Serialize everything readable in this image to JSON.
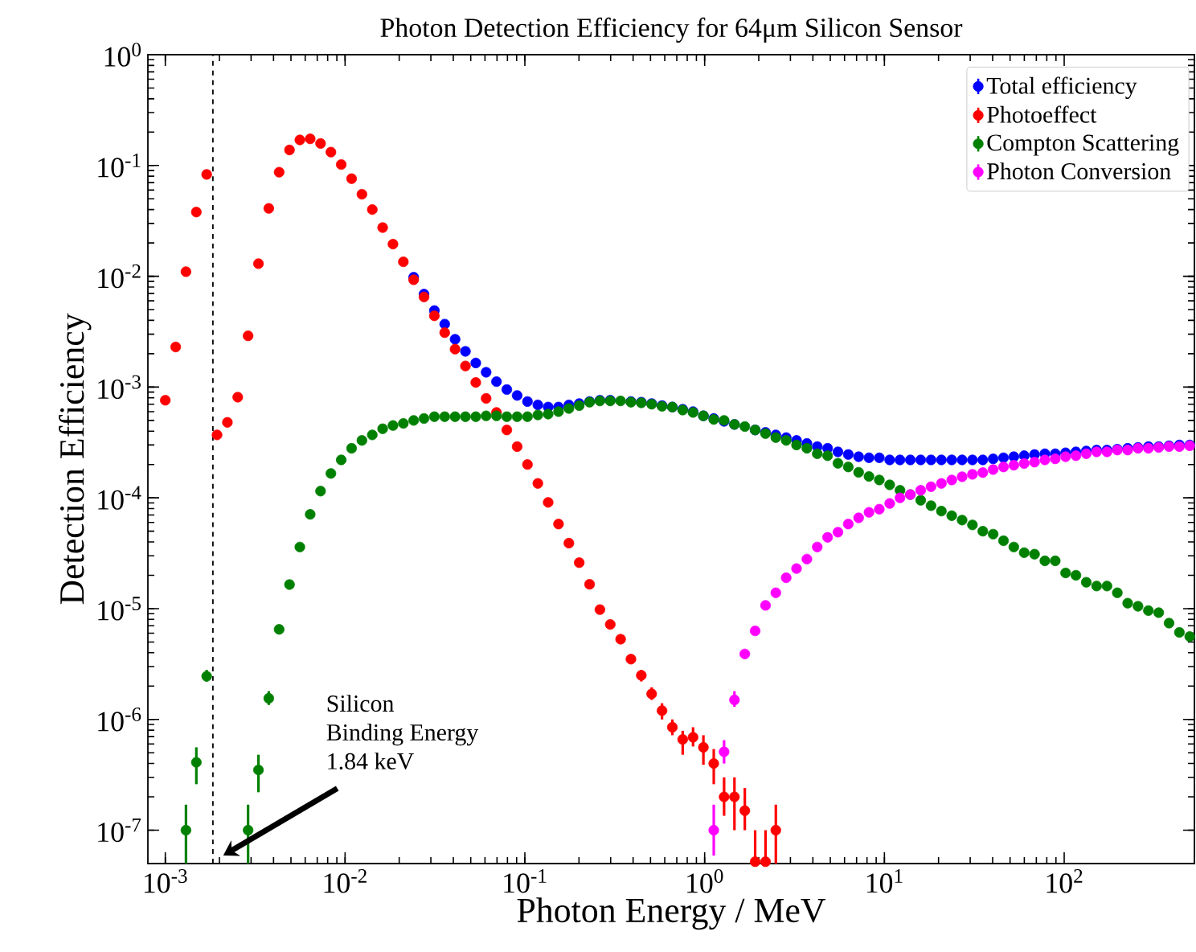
{
  "chart_data": {
    "type": "scatter",
    "title": "Photon Detection Efficiency for 64μm Silicon Sensor",
    "xlabel": "Photon Energy / MeV",
    "ylabel": "Detection Efficiency",
    "log": "xy",
    "marker": "circle",
    "legend": "top right",
    "xlim": [
      0.0008,
      530
    ],
    "ylim": [
      5e-08,
      1
    ],
    "xticks": [
      {
        "value": 0.001,
        "label": "10$^{-3}$"
      },
      {
        "value": 0.01,
        "label": "10$^{-2}$"
      },
      {
        "value": 0.1,
        "label": "10$^{-1}$"
      },
      {
        "value": 1,
        "label": "10$^{0}$"
      },
      {
        "value": 10,
        "label": "10$^{1}$"
      },
      {
        "value": 100,
        "label": "10$^{2}$"
      }
    ],
    "yticks": [
      {
        "value": 1e-07,
        "label": "10$^{-7}$"
      },
      {
        "value": 1e-06,
        "label": "10$^{-6}$"
      },
      {
        "value": 1e-05,
        "label": "10$^{-5}$"
      },
      {
        "value": 0.0001,
        "label": "10$^{-4}$"
      },
      {
        "value": 0.001,
        "label": "10$^{-3}$"
      },
      {
        "value": 0.01,
        "label": "10$^{-2}$"
      },
      {
        "value": 0.1,
        "label": "10$^{-1}$"
      },
      {
        "value": 1,
        "label": "10$^{0}$"
      }
    ],
    "ref_lines": [
      {
        "axis": "x",
        "value": 0.00184,
        "color": "#000000",
        "line_style": "dashed"
      }
    ],
    "annotations": [
      "Silicon\nBinding Energy\n1.84 keV"
    ],
    "x": [
      0.001,
      0.001142,
      0.001303,
      0.001488,
      0.001699,
      0.00194,
      0.002215,
      0.002529,
      0.002887,
      0.003297,
      0.003764,
      0.004298,
      0.004907,
      0.005603,
      0.006397,
      0.007304,
      0.00834,
      0.009518,
      0.01087,
      0.01241,
      0.01417,
      0.01618,
      0.01847,
      0.02109,
      0.02407,
      0.02748,
      0.03138,
      0.03583,
      0.04091,
      0.04671,
      0.05333,
      0.06089,
      0.06952,
      0.07937,
      0.0906,
      0.1034,
      0.1181,
      0.1348,
      0.1539,
      0.1757,
      0.2006,
      0.2291,
      0.2615,
      0.2986,
      0.3409,
      0.3892,
      0.4444,
      0.5074,
      0.5793,
      0.6614,
      0.7551,
      0.8621,
      0.9843,
      1.124,
      1.283,
      1.465,
      1.673,
      1.91,
      2.181,
      2.489,
      2.842,
      3.245,
      3.705,
      4.23,
      4.83,
      5.514,
      6.296,
      7.188,
      8.207,
      9.368,
      10.7,
      12.21,
      13.94,
      15.92,
      18.17,
      20.75,
      23.69,
      27.05,
      30.88,
      35.26,
      40.25,
      45.96,
      52.47,
      59.91,
      68.4,
      78.09,
      89.16,
      101.8,
      116.2,
      132.7,
      151.5,
      173.0,
      197.5,
      225.5,
      257.4,
      293.9,
      335.6,
      383.1,
      437.4,
      499.4
    ],
    "series": [
      {
        "name": "Total efficiency",
        "color": "#0000ff",
        "values": [
          null,
          null,
          null,
          null,
          null,
          null,
          null,
          null,
          null,
          null,
          null,
          null,
          null,
          null,
          null,
          null,
          null,
          null,
          null,
          null,
          null,
          null,
          null,
          null,
          0.0098,
          0.0069,
          0.0049,
          0.0037,
          0.0027,
          0.0021,
          0.00165,
          0.00136,
          0.00112,
          0.00095,
          0.00084,
          0.00074,
          0.00069,
          0.00066,
          0.00066,
          0.00069,
          0.00071,
          0.00074,
          0.00076,
          0.00076,
          null,
          0.00074,
          0.00073,
          0.00071,
          0.00068,
          0.00066,
          0.00063,
          0.0006,
          0.00055,
          0.00052,
          0.00049,
          0.00046,
          null,
          0.00041,
          0.00039,
          0.00037,
          0.00035,
          0.00033,
          0.00031,
          0.00029,
          0.00028,
          0.00026,
          0.000246,
          0.000235,
          0.00023,
          0.00023,
          0.00022,
          0.00022,
          0.00022,
          0.00022,
          0.00022,
          0.00022,
          0.00022,
          0.00022,
          0.00022,
          0.00022,
          0.000225,
          0.00023,
          0.000235,
          0.00024,
          0.000246,
          0.00025,
          0.00025,
          0.000255,
          0.00026,
          0.000265,
          0.00027,
          0.00027,
          0.000275,
          0.00028,
          0.000285,
          0.00029,
          0.00029,
          0.000295,
          0.0003,
          0.0003
        ]
      },
      {
        "name": "Photoeffect",
        "color": "#ff0000",
        "values": [
          0.00076,
          0.0023,
          0.011,
          0.038,
          0.083,
          0.00037,
          0.00048,
          0.00081,
          0.0029,
          0.013,
          0.041,
          0.087,
          0.138,
          0.17,
          0.174,
          0.158,
          0.132,
          0.102,
          0.076,
          0.055,
          0.04,
          0.0275,
          0.0195,
          0.0135,
          0.0093,
          0.0065,
          0.0044,
          0.0031,
          0.0022,
          0.00155,
          0.0011,
          0.00079,
          0.00059,
          0.00041,
          0.00029,
          0.0002,
          0.000135,
          9.1e-05,
          5.8e-05,
          3.9e-05,
          2.6e-05,
          1.66e-05,
          9.8e-06,
          7.2e-06,
          5.3e-06,
          3.5e-06,
          2.5e-06,
          1.7e-06,
          1.2e-06,
          8.5e-07,
          6.6e-07,
          6.9e-07,
          5.6e-07,
          4e-07,
          2e-07,
          2e-07,
          1.5e-07,
          5.2e-08,
          5.2e-08,
          1e-07,
          null,
          null,
          null,
          null,
          null,
          null,
          null,
          null,
          null,
          null,
          null,
          null,
          null,
          null,
          null,
          null,
          null,
          null,
          null,
          null,
          null,
          null,
          null,
          null,
          null,
          null,
          null,
          null,
          null,
          null,
          null,
          null,
          null,
          null,
          null,
          null,
          null,
          null,
          null,
          null
        ],
        "errors": [
          null,
          null,
          null,
          null,
          null,
          null,
          null,
          null,
          null,
          null,
          null,
          null,
          null,
          null,
          null,
          null,
          null,
          null,
          null,
          null,
          null,
          null,
          null,
          null,
          null,
          null,
          null,
          null,
          null,
          null,
          null,
          null,
          null,
          null,
          null,
          null,
          null,
          null,
          null,
          null,
          null,
          null,
          null,
          null,
          null,
          null,
          [
            2.2e-06,
            2.8e-06
          ],
          [
            1.5e-06,
            1.95e-06
          ],
          [
            1e-06,
            1.4e-06
          ],
          [
            7.2e-07,
            1e-06
          ],
          [
            4.8e-07,
            7.9e-07
          ],
          [
            5.7e-07,
            8.5e-07
          ],
          [
            3.9e-07,
            7.2e-07
          ],
          [
            2.6e-07,
            5.4e-07
          ],
          [
            1.35e-07,
            3e-07
          ],
          [
            1e-07,
            3e-07
          ],
          [
            1e-07,
            2.4e-07
          ],
          [
            5e-08,
            1e-07
          ],
          [
            5e-08,
            1e-07
          ],
          [
            5e-08,
            1.7e-07
          ],
          null,
          null,
          null,
          null,
          null,
          null,
          null,
          null,
          null,
          null,
          null,
          null,
          null,
          null,
          null,
          null,
          null,
          null,
          null,
          null,
          null,
          null,
          null,
          null,
          null,
          null,
          null,
          null,
          null,
          null,
          null,
          null,
          null,
          null,
          null,
          null,
          null,
          null,
          null,
          null
        ]
      },
      {
        "name": "Compton Scattering",
        "color": "#008000",
        "values": [
          null,
          null,
          1e-07,
          4.1e-07,
          2.45e-06,
          null,
          null,
          null,
          1e-07,
          3.5e-07,
          1.55e-06,
          6.5e-06,
          1.65e-05,
          3.6e-05,
          7.1e-05,
          0.000115,
          0.000166,
          0.00022,
          0.00028,
          0.00033,
          0.00037,
          0.00042,
          0.00045,
          0.00047,
          0.0005,
          0.00052,
          0.00054,
          0.00054,
          0.00054,
          0.00054,
          0.00054,
          0.00055,
          0.00055,
          0.00054,
          0.00054,
          0.00054,
          0.00056,
          0.00057,
          0.0006,
          0.00064,
          0.00068,
          0.00073,
          0.00075,
          0.00075,
          0.00075,
          0.00073,
          0.00072,
          0.0007,
          0.00067,
          0.00066,
          0.00062,
          0.00059,
          0.00055,
          0.00051,
          0.0005,
          0.00046,
          0.00044,
          0.00041,
          0.00038,
          0.00035,
          0.00033,
          0.0003,
          0.00028,
          0.00025,
          0.00024,
          0.000205,
          0.00019,
          0.00017,
          0.000156,
          0.000145,
          0.000131,
          0.000117,
          0.000107,
          9.5e-05,
          8.5e-05,
          7.6e-05,
          6.9e-05,
          6.3e-05,
          5.7e-05,
          5e-05,
          4.7e-05,
          4.1e-05,
          3.6e-05,
          3.2e-05,
          3.1e-05,
          2.7e-05,
          2.7e-05,
          2.1e-05,
          2e-05,
          1.73e-05,
          1.6e-05,
          1.6e-05,
          1.39e-05,
          1.12e-05,
          1.05e-05,
          9.6e-06,
          9.2e-06,
          7.4e-06,
          6.1e-06,
          5.6e-06
        ],
        "errors": [
          null,
          null,
          [
            5e-08,
            1.7e-07
          ],
          [
            2.6e-07,
            5.6e-07
          ],
          [
            2.2e-06,
            2.8e-06
          ],
          null,
          null,
          null,
          [
            5e-08,
            1.7e-07
          ],
          [
            2.2e-07,
            4.8e-07
          ],
          [
            1.35e-06,
            1.8e-06
          ],
          null,
          null,
          null,
          null,
          null,
          null,
          null,
          null,
          null,
          null,
          null,
          null,
          null,
          null,
          null,
          null,
          null,
          null,
          null,
          null,
          null,
          null,
          null,
          null,
          null,
          null,
          null,
          null,
          null,
          null,
          null,
          null,
          null,
          null,
          null,
          null,
          null,
          null,
          null,
          null,
          null,
          null,
          null,
          null,
          null,
          null,
          null,
          null,
          null,
          null,
          null,
          null,
          null,
          null,
          null,
          null,
          null,
          null,
          null,
          null,
          null,
          null,
          null,
          null,
          null,
          null,
          null,
          null,
          null,
          null,
          null,
          null,
          null,
          null,
          null,
          null,
          null,
          null,
          null,
          null,
          null,
          null,
          null,
          null,
          null,
          null,
          null,
          null,
          null
        ]
      },
      {
        "name": "Photon Conversion",
        "color": "#ff00ff",
        "values": [
          null,
          null,
          null,
          null,
          null,
          null,
          null,
          null,
          null,
          null,
          null,
          null,
          null,
          null,
          null,
          null,
          null,
          null,
          null,
          null,
          null,
          null,
          null,
          null,
          null,
          null,
          null,
          null,
          null,
          null,
          null,
          null,
          null,
          null,
          null,
          null,
          null,
          null,
          null,
          null,
          null,
          null,
          null,
          null,
          null,
          null,
          null,
          null,
          null,
          null,
          null,
          null,
          null,
          1e-07,
          5.1e-07,
          1.5e-06,
          3.9e-06,
          6.3e-06,
          1.07e-05,
          1.39e-05,
          1.9e-05,
          2.3e-05,
          2.8e-05,
          3.6e-05,
          4.4e-05,
          4.9e-05,
          5.8e-05,
          6.6e-05,
          7.4e-05,
          7.9e-05,
          8.9e-05,
          0.0001,
          0.000107,
          0.000117,
          0.000126,
          0.000135,
          0.000145,
          0.000155,
          0.000163,
          0.000169,
          0.00018,
          0.00019,
          0.000197,
          0.000204,
          0.00021,
          0.00022,
          0.000225,
          0.000235,
          0.00024,
          0.00025,
          0.00026,
          0.00026,
          0.00027,
          0.00027,
          0.00028,
          0.00028,
          0.000285,
          0.00029,
          0.00029,
          0.000295
        ],
        "errors": [
          null,
          null,
          null,
          null,
          null,
          null,
          null,
          null,
          null,
          null,
          null,
          null,
          null,
          null,
          null,
          null,
          null,
          null,
          null,
          null,
          null,
          null,
          null,
          null,
          null,
          null,
          null,
          null,
          null,
          null,
          null,
          null,
          null,
          null,
          null,
          null,
          null,
          null,
          null,
          null,
          null,
          null,
          null,
          null,
          null,
          null,
          null,
          null,
          null,
          null,
          null,
          null,
          null,
          [
            5.9e-08,
            1.7e-07
          ],
          [
            4e-07,
            6.5e-07
          ],
          [
            1.3e-06,
            1.8e-06
          ],
          null,
          null,
          null,
          null,
          null,
          null,
          null,
          null,
          null,
          null,
          null,
          null,
          null,
          null,
          null,
          null,
          null,
          null,
          null,
          null,
          null,
          null,
          null,
          null,
          null,
          null,
          null,
          null,
          null,
          null,
          null,
          null,
          null,
          null,
          null,
          null,
          null,
          null,
          null,
          null,
          null,
          null,
          null,
          null
        ]
      }
    ]
  }
}
